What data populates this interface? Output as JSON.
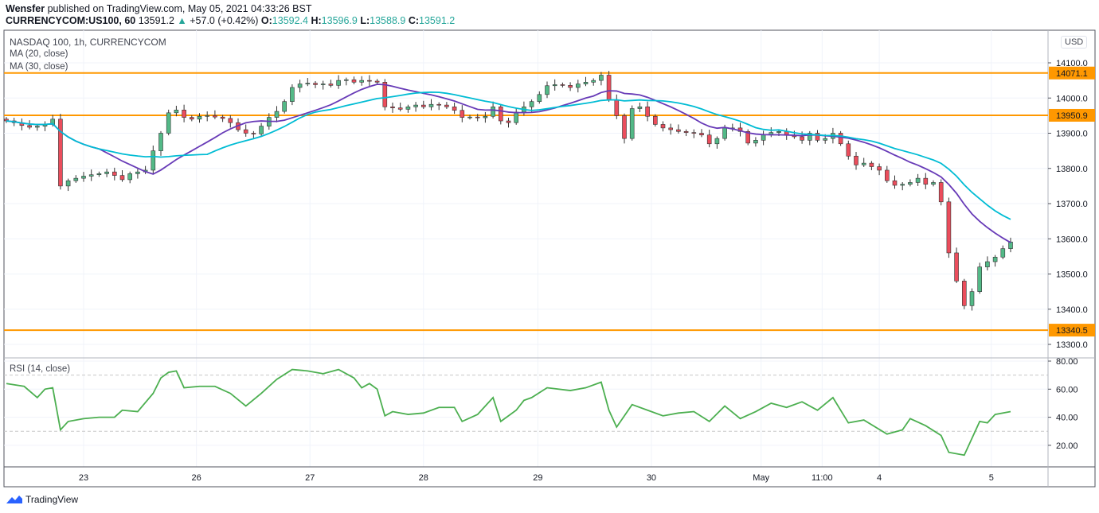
{
  "header": {
    "author": "Wensfer",
    "published": " published on TradingView.com, May 05, 2021 04:33:26 BST",
    "symbol": "CURRENCYCOM:US100, 60",
    "last": "13591.2",
    "change": "+57.0 (+0.42%)",
    "o_label": "O:",
    "o": "13592.4",
    "h_label": "H:",
    "h": "13596.9",
    "l_label": "L:",
    "l": "13588.9",
    "c_label": "C:",
    "c": "13591.2"
  },
  "legend": {
    "title": "NASDAQ 100, 1h, CURRENCYCOM",
    "ma20": "MA (20, close)",
    "ma30": "MA (30, close)",
    "rsi": "RSI (14, close)"
  },
  "currency": "USD",
  "logo": "TradingView",
  "colors": {
    "up": "#53b987",
    "down": "#eb4d5c",
    "ma20": "#673ab7",
    "ma30": "#00bcd4",
    "level": "#ff9800",
    "rsi": "#4caf50"
  },
  "chart_data": {
    "type": "candlestick",
    "price_axis": {
      "ylim": [
        13260,
        14160
      ],
      "ticks": [
        14100,
        14000,
        13900,
        13800,
        13700,
        13600,
        13500,
        13400,
        13300
      ],
      "tick_labels": [
        "14100.0",
        "14000.0",
        "13900.0",
        "13800.0",
        "13700.0",
        "13600.0",
        "13500.0",
        "13400.0",
        "13300.0"
      ]
    },
    "levels": [
      {
        "value": 14071.1,
        "label": "14071.1"
      },
      {
        "value": 13950.9,
        "label": "13950.9"
      },
      {
        "value": 13340.5,
        "label": "13340.5"
      }
    ],
    "time_ticks": [
      {
        "i": 10,
        "label": "23"
      },
      {
        "i": 24.6,
        "label": "26"
      },
      {
        "i": 39.3,
        "label": "27"
      },
      {
        "i": 54,
        "label": "28"
      },
      {
        "i": 68.8,
        "label": "29"
      },
      {
        "i": 83.5,
        "label": "30"
      },
      {
        "i": 97.7,
        "label": "May"
      },
      {
        "i": 105.6,
        "label": "11:00"
      },
      {
        "i": 113,
        "label": "4"
      },
      {
        "i": 127.5,
        "label": "5"
      }
    ],
    "closes": [
      13935,
      13930,
      13922,
      13917,
      13920,
      13925,
      13940,
      13750,
      13765,
      13772,
      13778,
      13782,
      13785,
      13790,
      13780,
      13768,
      13785,
      13790,
      13795,
      13850,
      13900,
      13958,
      13966,
      13945,
      13940,
      13948,
      13950,
      13946,
      13942,
      13930,
      13910,
      13900,
      13898,
      13920,
      13945,
      13962,
      13990,
      14030,
      14040,
      14042,
      14038,
      14040,
      14036,
      14050,
      14052,
      14045,
      14050,
      14048,
      14045,
      13975,
      13972,
      13968,
      13975,
      13980,
      13975,
      13982,
      13980,
      13975,
      13965,
      13945,
      13946,
      13944,
      13948,
      13975,
      13935,
      13930,
      13960,
      13975,
      13990,
      14010,
      14035,
      14038,
      14036,
      14030,
      14040,
      14045,
      14050,
      14065,
      13995,
      13950,
      13885,
      13970,
      13975,
      13948,
      13925,
      13915,
      13910,
      13905,
      13902,
      13900,
      13895,
      13870,
      13885,
      13915,
      13915,
      13905,
      13872,
      13880,
      13895,
      13902,
      13905,
      13895,
      13890,
      13880,
      13900,
      13880,
      13885,
      13900,
      13870,
      13835,
      13810,
      13815,
      13805,
      13795,
      13765,
      13752,
      13755,
      13760,
      13772,
      13755,
      13760,
      13705,
      13560,
      13480,
      13410,
      13450,
      13520,
      13535,
      13548,
      13572,
      13591
    ],
    "rsi": {
      "ylim": [
        5,
        90
      ],
      "ticks": [
        80,
        60,
        40,
        20
      ],
      "tick_labels": [
        "80.00",
        "60.00",
        "40.00",
        "20.00"
      ],
      "bands": [
        70,
        30
      ],
      "points": [
        [
          0,
          64
        ],
        [
          2.3,
          62
        ],
        [
          4,
          54
        ],
        [
          5,
          60
        ],
        [
          6,
          61
        ],
        [
          7,
          31
        ],
        [
          8,
          37
        ],
        [
          10,
          39
        ],
        [
          12,
          40
        ],
        [
          14,
          40
        ],
        [
          15,
          45
        ],
        [
          17,
          44
        ],
        [
          19,
          57
        ],
        [
          20,
          68
        ],
        [
          21,
          72
        ],
        [
          22,
          73
        ],
        [
          23,
          61
        ],
        [
          25,
          62
        ],
        [
          27,
          62
        ],
        [
          29,
          57
        ],
        [
          31,
          48
        ],
        [
          33,
          57
        ],
        [
          35,
          67
        ],
        [
          37,
          74
        ],
        [
          39,
          73
        ],
        [
          41,
          71
        ],
        [
          43,
          74
        ],
        [
          45,
          68
        ],
        [
          46,
          61
        ],
        [
          47,
          64
        ],
        [
          48,
          60
        ],
        [
          49,
          41
        ],
        [
          50,
          44
        ],
        [
          52,
          42
        ],
        [
          54,
          43
        ],
        [
          56,
          47
        ],
        [
          58,
          47
        ],
        [
          59,
          37
        ],
        [
          61,
          42
        ],
        [
          63,
          54
        ],
        [
          64,
          37
        ],
        [
          66,
          45
        ],
        [
          67,
          52
        ],
        [
          68,
          54
        ],
        [
          70,
          61
        ],
        [
          73,
          59
        ],
        [
          75,
          61
        ],
        [
          77,
          65
        ],
        [
          78,
          45
        ],
        [
          79,
          33
        ],
        [
          81,
          49
        ],
        [
          83,
          45
        ],
        [
          85,
          41
        ],
        [
          87,
          43
        ],
        [
          89,
          44
        ],
        [
          91,
          37
        ],
        [
          93,
          48
        ],
        [
          95,
          39
        ],
        [
          97,
          44
        ],
        [
          99,
          50
        ],
        [
          101,
          47
        ],
        [
          103,
          51
        ],
        [
          105,
          45
        ],
        [
          107,
          54
        ],
        [
          109,
          36
        ],
        [
          111,
          38
        ],
        [
          114,
          28
        ],
        [
          116,
          31
        ],
        [
          117,
          39
        ],
        [
          119,
          34
        ],
        [
          121,
          27
        ],
        [
          122,
          15
        ],
        [
          124,
          13
        ],
        [
          126,
          37
        ],
        [
          127,
          36
        ],
        [
          128,
          42
        ],
        [
          130,
          44
        ]
      ]
    }
  }
}
